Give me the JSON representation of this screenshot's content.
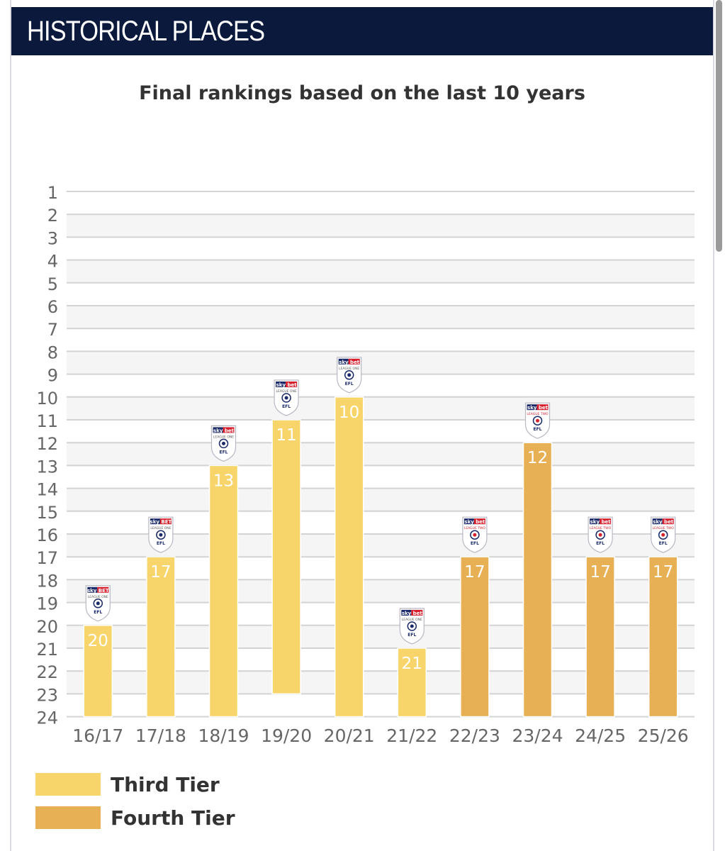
{
  "header": {
    "title": "HISTORICAL PLACES"
  },
  "chart_data": {
    "type": "bar",
    "title": "Final rankings based on the last 10 years",
    "categories": [
      "16/17",
      "17/18",
      "18/19",
      "19/20",
      "20/21",
      "21/22",
      "22/23",
      "23/24",
      "24/25",
      "25/26"
    ],
    "values": [
      20,
      17,
      13,
      11,
      10,
      21,
      17,
      12,
      17,
      17
    ],
    "value_labels": [
      "20",
      "17",
      "13",
      "11",
      "10",
      "21",
      "17",
      "12",
      "17",
      "17"
    ],
    "tiers": [
      "third",
      "third",
      "third",
      "third",
      "third",
      "third",
      "fourth",
      "fourth",
      "fourth",
      "fourth"
    ],
    "ylim": [
      1,
      24
    ],
    "y_axis_inverted": true,
    "y_ticks": [
      1,
      2,
      3,
      4,
      5,
      6,
      7,
      8,
      9,
      10,
      11,
      12,
      13,
      14,
      15,
      16,
      17,
      18,
      19,
      20,
      21,
      22,
      23,
      24
    ],
    "grid": true,
    "colors": {
      "third": "#f7d56a",
      "fourth": "#e8b055",
      "grid": "#d3d3d3",
      "band": "#f5f5f5"
    },
    "badges": [
      {
        "top": "sky BET",
        "bottom": "LEAGUE ONE",
        "crest": "EFL",
        "icon": "league-one-badge-icon"
      },
      {
        "top": "sky BET",
        "bottom": "LEAGUE ONE",
        "crest": "EFL",
        "icon": "league-one-badge-icon"
      },
      {
        "top": "sky bet",
        "bottom": "LEAGUE ONE",
        "crest": "EFL",
        "icon": "league-one-badge-icon"
      },
      {
        "top": "sky bet",
        "bottom": "LEAGUE ONE",
        "crest": "EFL",
        "icon": "league-one-badge-icon"
      },
      {
        "top": "sky bet",
        "bottom": "LEAGUE ONE",
        "crest": "EFL",
        "icon": "league-one-badge-icon"
      },
      {
        "top": "sky bet",
        "bottom": "LEAGUE ONE",
        "crest": "EFL",
        "icon": "league-one-badge-icon"
      },
      {
        "top": "sky bet",
        "bottom": "LEAGUE TWO",
        "crest": "EFL",
        "icon": "league-two-badge-icon"
      },
      {
        "top": "sky bet",
        "bottom": "LEAGUE TWO",
        "crest": "EFL",
        "icon": "league-two-badge-icon"
      },
      {
        "top": "sky bet",
        "bottom": "LEAGUE TWO",
        "crest": "EFL",
        "icon": "league-two-badge-icon"
      },
      {
        "top": "sky bet",
        "bottom": "LEAGUE TWO",
        "crest": "EFL",
        "icon": "league-two-badge-icon"
      }
    ]
  },
  "legend": {
    "third_label": "Third Tier",
    "fourth_label": "Fourth Tier",
    "third_color": "#f7d56a",
    "fourth_color": "#e8b055"
  }
}
